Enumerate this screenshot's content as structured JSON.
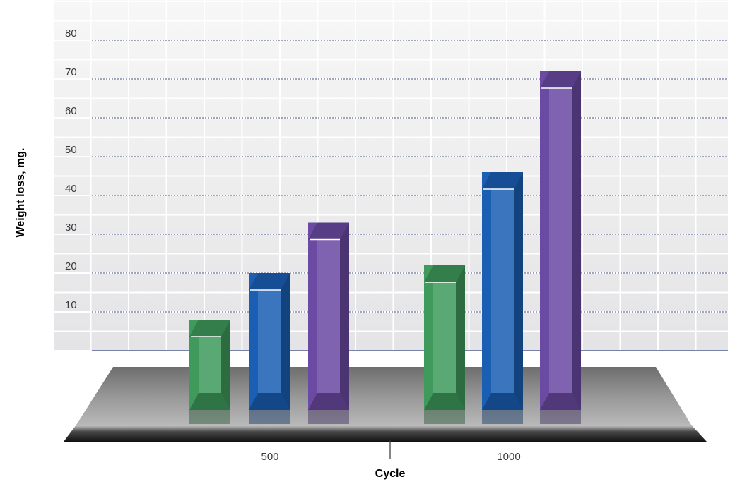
{
  "chart_data": {
    "type": "bar",
    "title": "",
    "xlabel": "Cycle",
    "ylabel": "Weight loss, mg.",
    "ylim": [
      0,
      80
    ],
    "yticks": [
      10,
      20,
      30,
      40,
      50,
      60,
      70,
      80
    ],
    "grid": true,
    "legend": "none",
    "categories": [
      "500",
      "1000"
    ],
    "series": [
      {
        "color": "#3f9a5c",
        "values": [
          8,
          22
        ]
      },
      {
        "color": "#1a5fb4",
        "values": [
          20,
          46
        ]
      },
      {
        "color": "#6a4aa3",
        "values": [
          33,
          72
        ]
      }
    ]
  }
}
